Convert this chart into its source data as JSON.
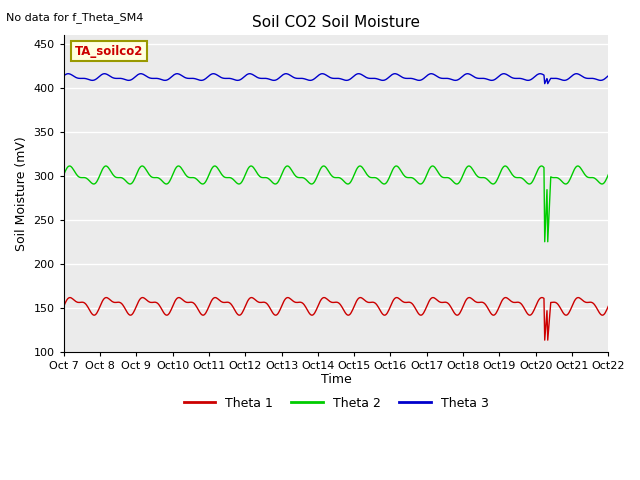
{
  "title": "Soil CO2 Soil Moisture",
  "top_left_text": "No data for f_Theta_SM4",
  "ylabel": "Soil Moisture (mV)",
  "xlabel": "Time",
  "ylim": [
    100,
    460
  ],
  "yticks": [
    100,
    150,
    200,
    250,
    300,
    350,
    400,
    450
  ],
  "xtick_labels": [
    "Oct 7",
    "Oct 8",
    "Oct 9",
    "Oct 10",
    "Oct 11",
    "Oct 12",
    "Oct 13",
    "Oct 14",
    "Oct 15",
    "Oct 16",
    "Oct 17",
    "Oct 18",
    "Oct 19",
    "Oct 20",
    "Oct 21",
    "Oct 22"
  ],
  "n_days": 15,
  "theta1_base": 153,
  "theta1_amp1": 8,
  "theta1_amp2": 4,
  "theta2_base": 300,
  "theta2_amp1": 8,
  "theta2_amp2": 4,
  "theta3_base": 412,
  "theta3_amp1": 3,
  "theta3_amp2": 1.5,
  "color1": "#cc0000",
  "color2": "#00cc00",
  "color3": "#0000cc",
  "bg_color": "#ebebeb",
  "legend_box_label": "TA_soilco2",
  "legend_labels": [
    "Theta 1",
    "Theta 2",
    "Theta 3"
  ],
  "spike_day": 13.35,
  "spike1_min": 113,
  "spike2_min": 225,
  "spike3_min": 405
}
